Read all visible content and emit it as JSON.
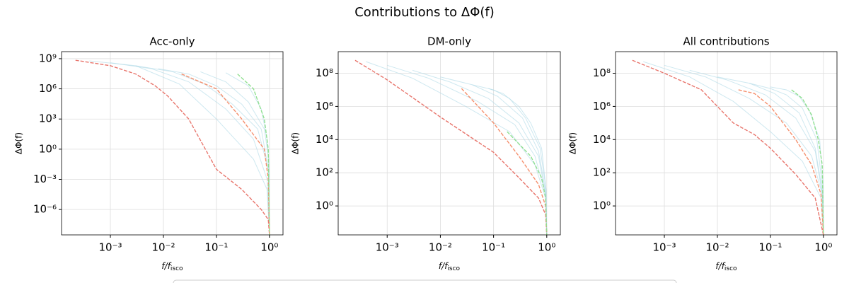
{
  "title": "Contributions to ΔΦ(f)",
  "chart_data": [
    {
      "type": "line",
      "title": "Acc-only",
      "xlabel": "f/f",
      "xlabel_sub": "isco",
      "ylabel": "ΔΦ(f)",
      "xscale": "log",
      "yscale": "log",
      "grid": true,
      "xlim": [
        0.00012,
        1.8
      ],
      "ylim": [
        3e-09,
        5000000000.0
      ],
      "xticks": [
        {
          "value": 0.001,
          "label": "10⁻³"
        },
        {
          "value": 0.01,
          "label": "10⁻²"
        },
        {
          "value": 0.1,
          "label": "10⁻¹"
        },
        {
          "value": 1,
          "label": "10⁰"
        }
      ],
      "yticks": [
        {
          "value": 1e-06,
          "label": "10⁻⁶"
        },
        {
          "value": 0.001,
          "label": "10⁻³"
        },
        {
          "value": 1,
          "label": "10⁰"
        },
        {
          "value": 1000,
          "label": "10³"
        },
        {
          "value": 1000000,
          "label": "10⁶"
        },
        {
          "value": 1000000000,
          "label": "10⁹"
        }
      ],
      "series": [
        {
          "color": "#add8e6",
          "style": "solid",
          "x": [
            0.0004,
            0.003,
            0.02,
            0.1,
            0.5,
            0.9,
            1
          ],
          "values": [
            600000000,
            200000000,
            3000000,
            1000,
            0.1,
            0.0001,
            3e-09
          ]
        },
        {
          "color": "#add8e6",
          "style": "solid",
          "x": [
            0.001,
            0.006,
            0.03,
            0.15,
            0.5,
            0.9,
            1
          ],
          "values": [
            400000000,
            100000000,
            5000000,
            10000,
            10,
            0.001,
            3e-09
          ]
        },
        {
          "color": "#add8e6",
          "style": "solid",
          "x": [
            0.003,
            0.015,
            0.06,
            0.2,
            0.6,
            0.95,
            1
          ],
          "values": [
            200000000,
            50000000,
            3000000,
            30000,
            100,
            0.01,
            3e-09
          ]
        },
        {
          "color": "#add8e6",
          "style": "solid",
          "x": [
            0.008,
            0.03,
            0.1,
            0.3,
            0.7,
            0.95,
            1
          ],
          "values": [
            100000000,
            30000000,
            2000000,
            30000,
            100,
            0.01,
            3e-09
          ]
        },
        {
          "color": "#add8e6",
          "style": "solid",
          "x": [
            0.05,
            0.15,
            0.4,
            0.8,
            0.97,
            1
          ],
          "values": [
            50000000,
            5000000,
            50000,
            100,
            0.1,
            3e-09
          ]
        },
        {
          "color": "#add8e6",
          "style": "solid",
          "x": [
            0.15,
            0.4,
            0.7,
            0.9,
            0.98,
            1
          ],
          "values": [
            40000000,
            2000000,
            10000,
            10,
            0.01,
            3e-09
          ]
        },
        {
          "color": "#e8756c",
          "style": "dashed",
          "x": [
            0.00022,
            0.001,
            0.003,
            0.007,
            0.012,
            0.03,
            0.1,
            0.3,
            0.7,
            0.95,
            1
          ],
          "values": [
            700000000,
            200000000,
            30000000,
            2000000,
            200000,
            1000,
            0.01,
            0.0001,
            1e-06,
            1e-07,
            3e-09
          ]
        },
        {
          "color": "#f5906e",
          "style": "dashed",
          "x": [
            0.022,
            0.1,
            0.3,
            0.8,
            0.95,
            1
          ],
          "values": [
            30000000,
            1000000,
            1000,
            1,
            0.001,
            3e-09
          ]
        },
        {
          "color": "#90e090",
          "style": "dashed",
          "x": [
            0.25,
            0.5,
            0.8,
            0.95,
            1
          ],
          "values": [
            30000000,
            1000000,
            1000,
            1,
            3e-09
          ]
        }
      ]
    },
    {
      "type": "line",
      "title": "DM-only",
      "xlabel": "f/f",
      "xlabel_sub": "isco",
      "ylabel": "ΔΦ(f)",
      "xscale": "log",
      "yscale": "log",
      "grid": true,
      "xlim": [
        0.00012,
        1.8
      ],
      "ylim": [
        0.018,
        2000000000
      ],
      "xticks": [
        {
          "value": 0.001,
          "label": "10⁻³"
        },
        {
          "value": 0.01,
          "label": "10⁻²"
        },
        {
          "value": 0.1,
          "label": "10⁻¹"
        },
        {
          "value": 1,
          "label": "10⁰"
        }
      ],
      "yticks": [
        {
          "value": 1,
          "label": "10⁰"
        },
        {
          "value": 100,
          "label": "10²"
        },
        {
          "value": 10000,
          "label": "10⁴"
        },
        {
          "value": 1000000,
          "label": "10⁶"
        },
        {
          "value": 100000000,
          "label": "10⁸"
        }
      ],
      "series": [
        {
          "color": "#add8e6",
          "style": "solid",
          "x": [
            0.0004,
            0.003,
            0.03,
            0.2,
            0.6,
            0.95,
            1
          ],
          "values": [
            500000000,
            50000000,
            1000000,
            30000,
            300,
            3,
            0.018
          ]
        },
        {
          "color": "#add8e6",
          "style": "solid",
          "x": [
            0.001,
            0.006,
            0.05,
            0.25,
            0.6,
            0.95,
            1
          ],
          "values": [
            300000000,
            50000000,
            2000000,
            80000,
            1000,
            5,
            0.018
          ]
        },
        {
          "color": "#add8e6",
          "style": "solid",
          "x": [
            0.003,
            0.015,
            0.08,
            0.3,
            0.7,
            0.95,
            1
          ],
          "values": [
            150000000,
            30000000,
            3000000,
            100000,
            1000,
            5,
            0.018
          ]
        },
        {
          "color": "#add8e6",
          "style": "solid",
          "x": [
            0.01,
            0.04,
            0.12,
            0.35,
            0.7,
            0.95,
            1
          ],
          "values": [
            60000000,
            20000000,
            4000000,
            200000,
            2000,
            8,
            0.018
          ]
        },
        {
          "color": "#add8e6",
          "style": "solid",
          "x": [
            0.04,
            0.1,
            0.2,
            0.4,
            0.75,
            0.97,
            1
          ],
          "values": [
            20000000,
            10000000,
            3000000,
            200000,
            3000,
            10,
            0.018
          ]
        },
        {
          "color": "#add8e6",
          "style": "solid",
          "x": [
            0.08,
            0.15,
            0.3,
            0.5,
            0.8,
            0.97,
            1
          ],
          "values": [
            12000000,
            6000000,
            1000000,
            100000,
            3000,
            10,
            0.018
          ]
        },
        {
          "color": "#e8756c",
          "style": "dashed",
          "x": [
            0.00025,
            0.001,
            0.01,
            0.1,
            0.3,
            0.7,
            0.95,
            1
          ],
          "values": [
            600000000,
            40000000,
            230000,
            1700,
            50,
            3,
            0.3,
            0.018
          ]
        },
        {
          "color": "#f5906e",
          "style": "dashed",
          "x": [
            0.025,
            0.1,
            0.3,
            0.7,
            0.95,
            1
          ],
          "values": [
            12000000,
            100000,
            1000,
            20,
            1,
            0.018
          ]
        },
        {
          "color": "#90e090",
          "style": "dashed",
          "x": [
            0.18,
            0.5,
            0.8,
            0.95,
            1
          ],
          "values": [
            30000,
            1000,
            50,
            3,
            0.018
          ]
        }
      ]
    },
    {
      "type": "line",
      "title": "All contributions",
      "xlabel": "f/f",
      "xlabel_sub": "isco",
      "ylabel": "ΔΦ(f)",
      "xscale": "log",
      "yscale": "log",
      "grid": true,
      "xlim": [
        0.00012,
        1.8
      ],
      "ylim": [
        0.018,
        2000000000
      ],
      "xticks": [
        {
          "value": 0.001,
          "label": "10⁻³"
        },
        {
          "value": 0.01,
          "label": "10⁻²"
        },
        {
          "value": 0.1,
          "label": "10⁻¹"
        },
        {
          "value": 1,
          "label": "10⁰"
        }
      ],
      "yticks": [
        {
          "value": 1,
          "label": "10⁰"
        },
        {
          "value": 100,
          "label": "10²"
        },
        {
          "value": 10000,
          "label": "10⁴"
        },
        {
          "value": 1000000,
          "label": "10⁶"
        },
        {
          "value": 100000000,
          "label": "10⁸"
        }
      ],
      "series": [
        {
          "color": "#add8e6",
          "style": "solid",
          "x": [
            0.0004,
            0.003,
            0.02,
            0.1,
            0.4,
            0.9,
            1
          ],
          "values": [
            500000000,
            60000000,
            2000000,
            30000,
            500,
            3,
            0.018
          ]
        },
        {
          "color": "#add8e6",
          "style": "solid",
          "x": [
            0.001,
            0.006,
            0.04,
            0.2,
            0.6,
            0.95,
            1
          ],
          "values": [
            300000000,
            60000000,
            3000000,
            100000,
            1000,
            5,
            0.018
          ]
        },
        {
          "color": "#add8e6",
          "style": "solid",
          "x": [
            0.003,
            0.015,
            0.08,
            0.3,
            0.7,
            0.95,
            1
          ],
          "values": [
            150000000,
            40000000,
            5000000,
            200000,
            2000,
            5,
            0.018
          ]
        },
        {
          "color": "#add8e6",
          "style": "solid",
          "x": [
            0.01,
            0.04,
            0.12,
            0.35,
            0.7,
            0.95,
            1
          ],
          "values": [
            60000000,
            25000000,
            6000000,
            400000,
            3000,
            8,
            0.018
          ]
        },
        {
          "color": "#add8e6",
          "style": "solid",
          "x": [
            0.04,
            0.1,
            0.2,
            0.4,
            0.75,
            0.97,
            1
          ],
          "values": [
            25000000,
            12000000,
            5000000,
            800000,
            10000,
            10,
            0.018
          ]
        },
        {
          "color": "#add8e6",
          "style": "solid",
          "x": [
            0.1,
            0.2,
            0.35,
            0.55,
            0.85,
            0.98,
            1
          ],
          "values": [
            15000000,
            10000000,
            4000000,
            500000,
            10000,
            20,
            0.018
          ]
        },
        {
          "color": "#e8756c",
          "style": "dashed",
          "x": [
            0.00025,
            0.001,
            0.005,
            0.01,
            0.02,
            0.05,
            0.1,
            0.3,
            0.7,
            1
          ],
          "values": [
            600000000,
            100000000,
            10000000,
            1000000,
            100000,
            20000,
            3000,
            80,
            3,
            0.018
          ]
        },
        {
          "color": "#f5906e",
          "style": "dashed",
          "x": [
            0.025,
            0.05,
            0.1,
            0.3,
            0.6,
            0.9,
            1
          ],
          "values": [
            10000000,
            6000000,
            1000000,
            10000,
            300,
            5,
            0.018
          ]
        },
        {
          "color": "#90e090",
          "style": "dashed",
          "x": [
            0.25,
            0.4,
            0.6,
            0.8,
            0.95,
            1
          ],
          "values": [
            10000000,
            3000000,
            300000,
            10000,
            300,
            0.018
          ]
        }
      ]
    }
  ]
}
